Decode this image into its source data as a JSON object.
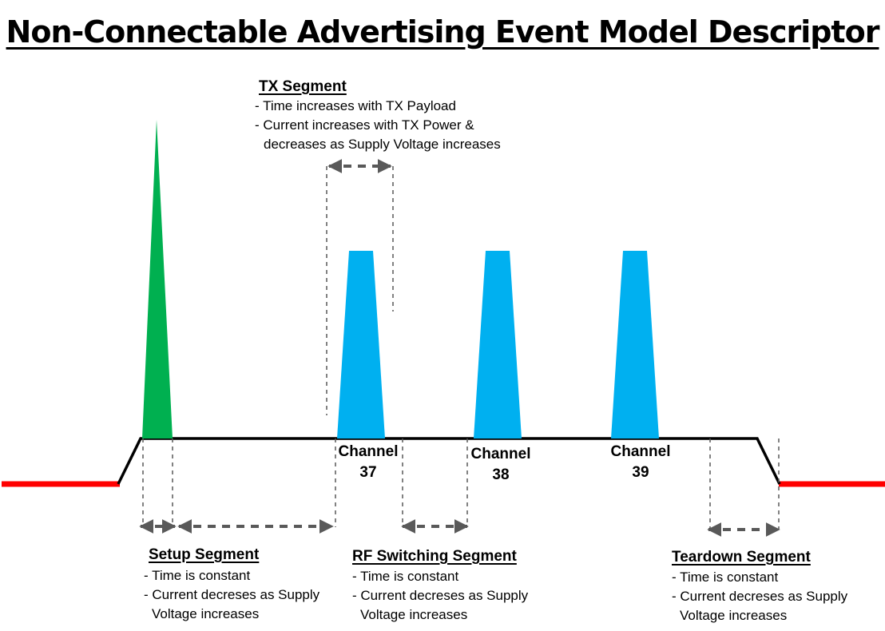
{
  "title": "Non-Connectable Advertising Event Model Descriptor",
  "tx_segment": {
    "heading": "TX Segment",
    "lines": [
      "- Time increases with TX Payload",
      "- Current increases with TX Power &",
      "decreases as Supply Voltage increases"
    ]
  },
  "setup_segment": {
    "heading": "Setup Segment",
    "lines": [
      "- Time is constant",
      "- Current decreses as Supply",
      "Voltage increases"
    ]
  },
  "rf_segment": {
    "heading": "RF Switching Segment",
    "lines": [
      "- Time is constant",
      "- Current decreses as Supply",
      "Voltage increases"
    ]
  },
  "teardown_segment": {
    "heading": "Teardown Segment",
    "lines": [
      "- Time is constant",
      "- Current decreses as Supply",
      "Voltage increases"
    ]
  },
  "channels": [
    {
      "label": "Channel",
      "number": "37"
    },
    {
      "label": "Channel",
      "number": "38"
    },
    {
      "label": "Channel",
      "number": "39"
    }
  ],
  "colors": {
    "idle": "#ff0000",
    "setup_spike": "#00b050",
    "tx_pulse": "#00b0f0",
    "baseline": "#000000",
    "dimension": "#595959"
  }
}
